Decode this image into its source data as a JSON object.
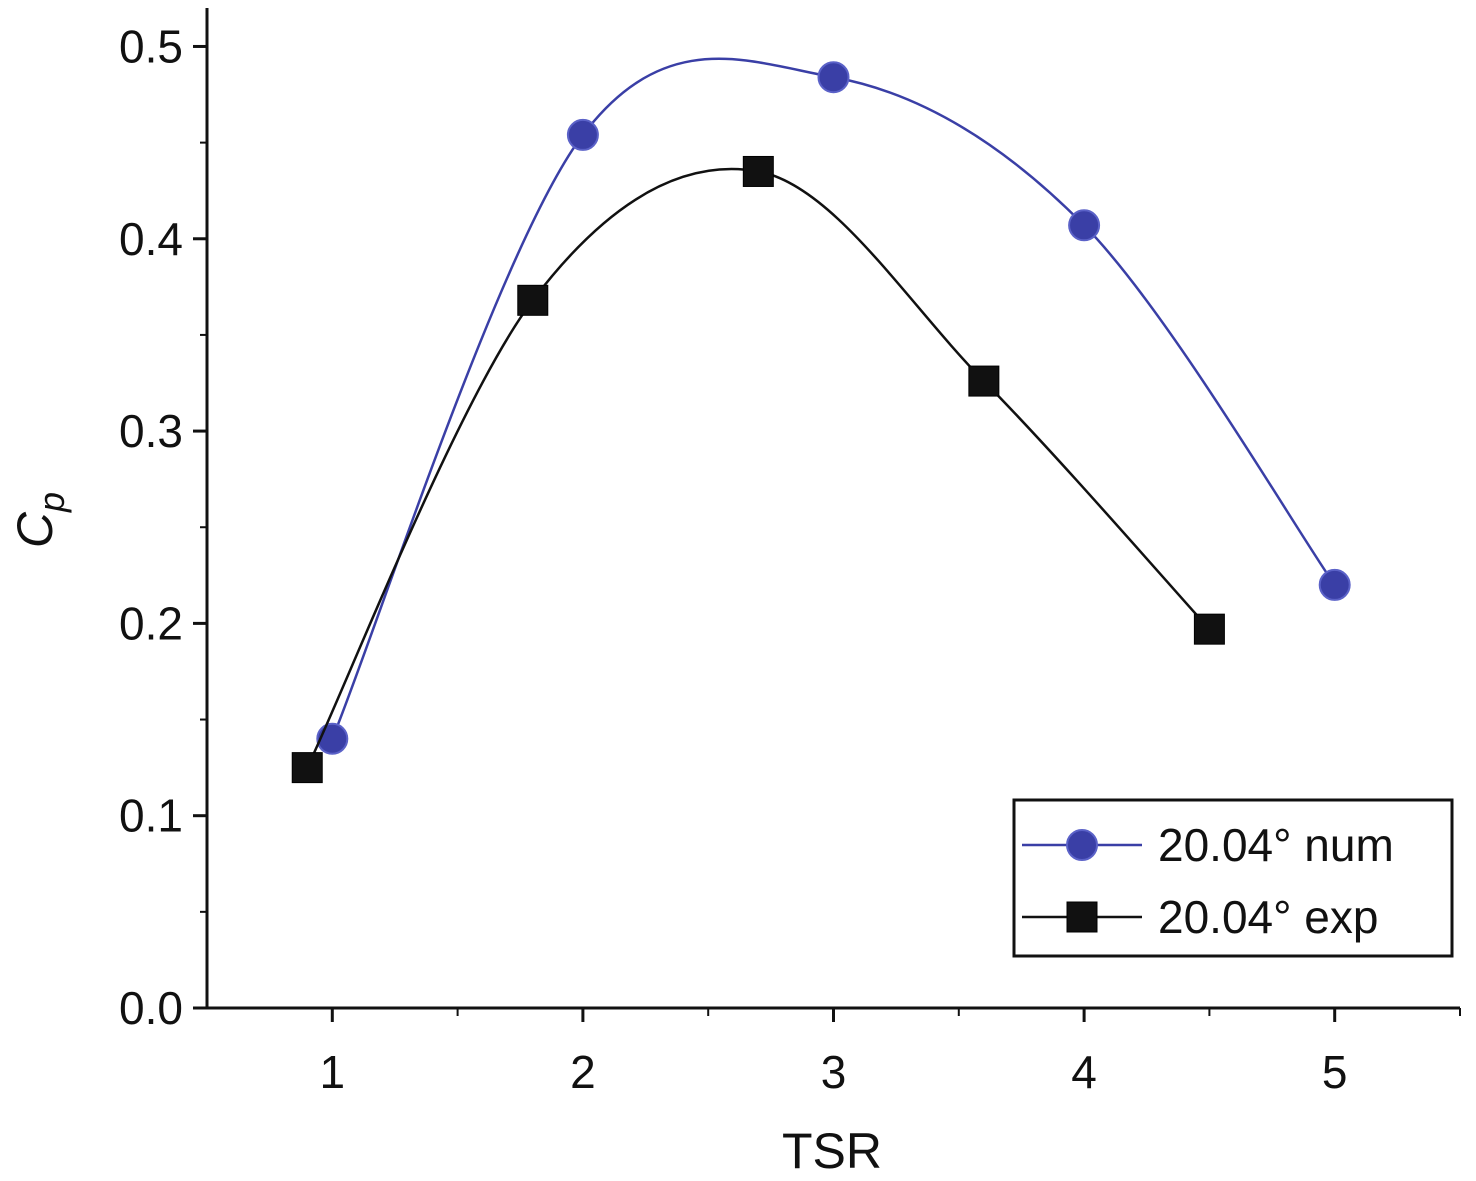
{
  "chart_data": {
    "type": "line",
    "title": "",
    "xlabel": "TSR",
    "ylabel": "C",
    "ylabel_subscript": "p",
    "xlim": [
      0.5,
      5.5
    ],
    "ylim": [
      0.0,
      0.52
    ],
    "xticks": [
      "1",
      "2",
      "3",
      "4",
      "5"
    ],
    "yticks": [
      "0.0",
      "0.1",
      "0.2",
      "0.3",
      "0.4",
      "0.5"
    ],
    "grid": false,
    "legend_position": "bottom-right",
    "series": [
      {
        "name": "20.04° num",
        "color": "#3a3fa6",
        "marker": "circle",
        "smooth": true,
        "x": [
          1.0,
          2.0,
          3.0,
          4.0,
          5.0
        ],
        "y": [
          0.14,
          0.454,
          0.484,
          0.407,
          0.22
        ]
      },
      {
        "name": "20.04° exp",
        "color": "#111111",
        "marker": "square",
        "smooth": true,
        "x": [
          0.9,
          1.8,
          2.7,
          3.6,
          4.5
        ],
        "y": [
          0.125,
          0.368,
          0.435,
          0.326,
          0.197
        ]
      }
    ]
  }
}
